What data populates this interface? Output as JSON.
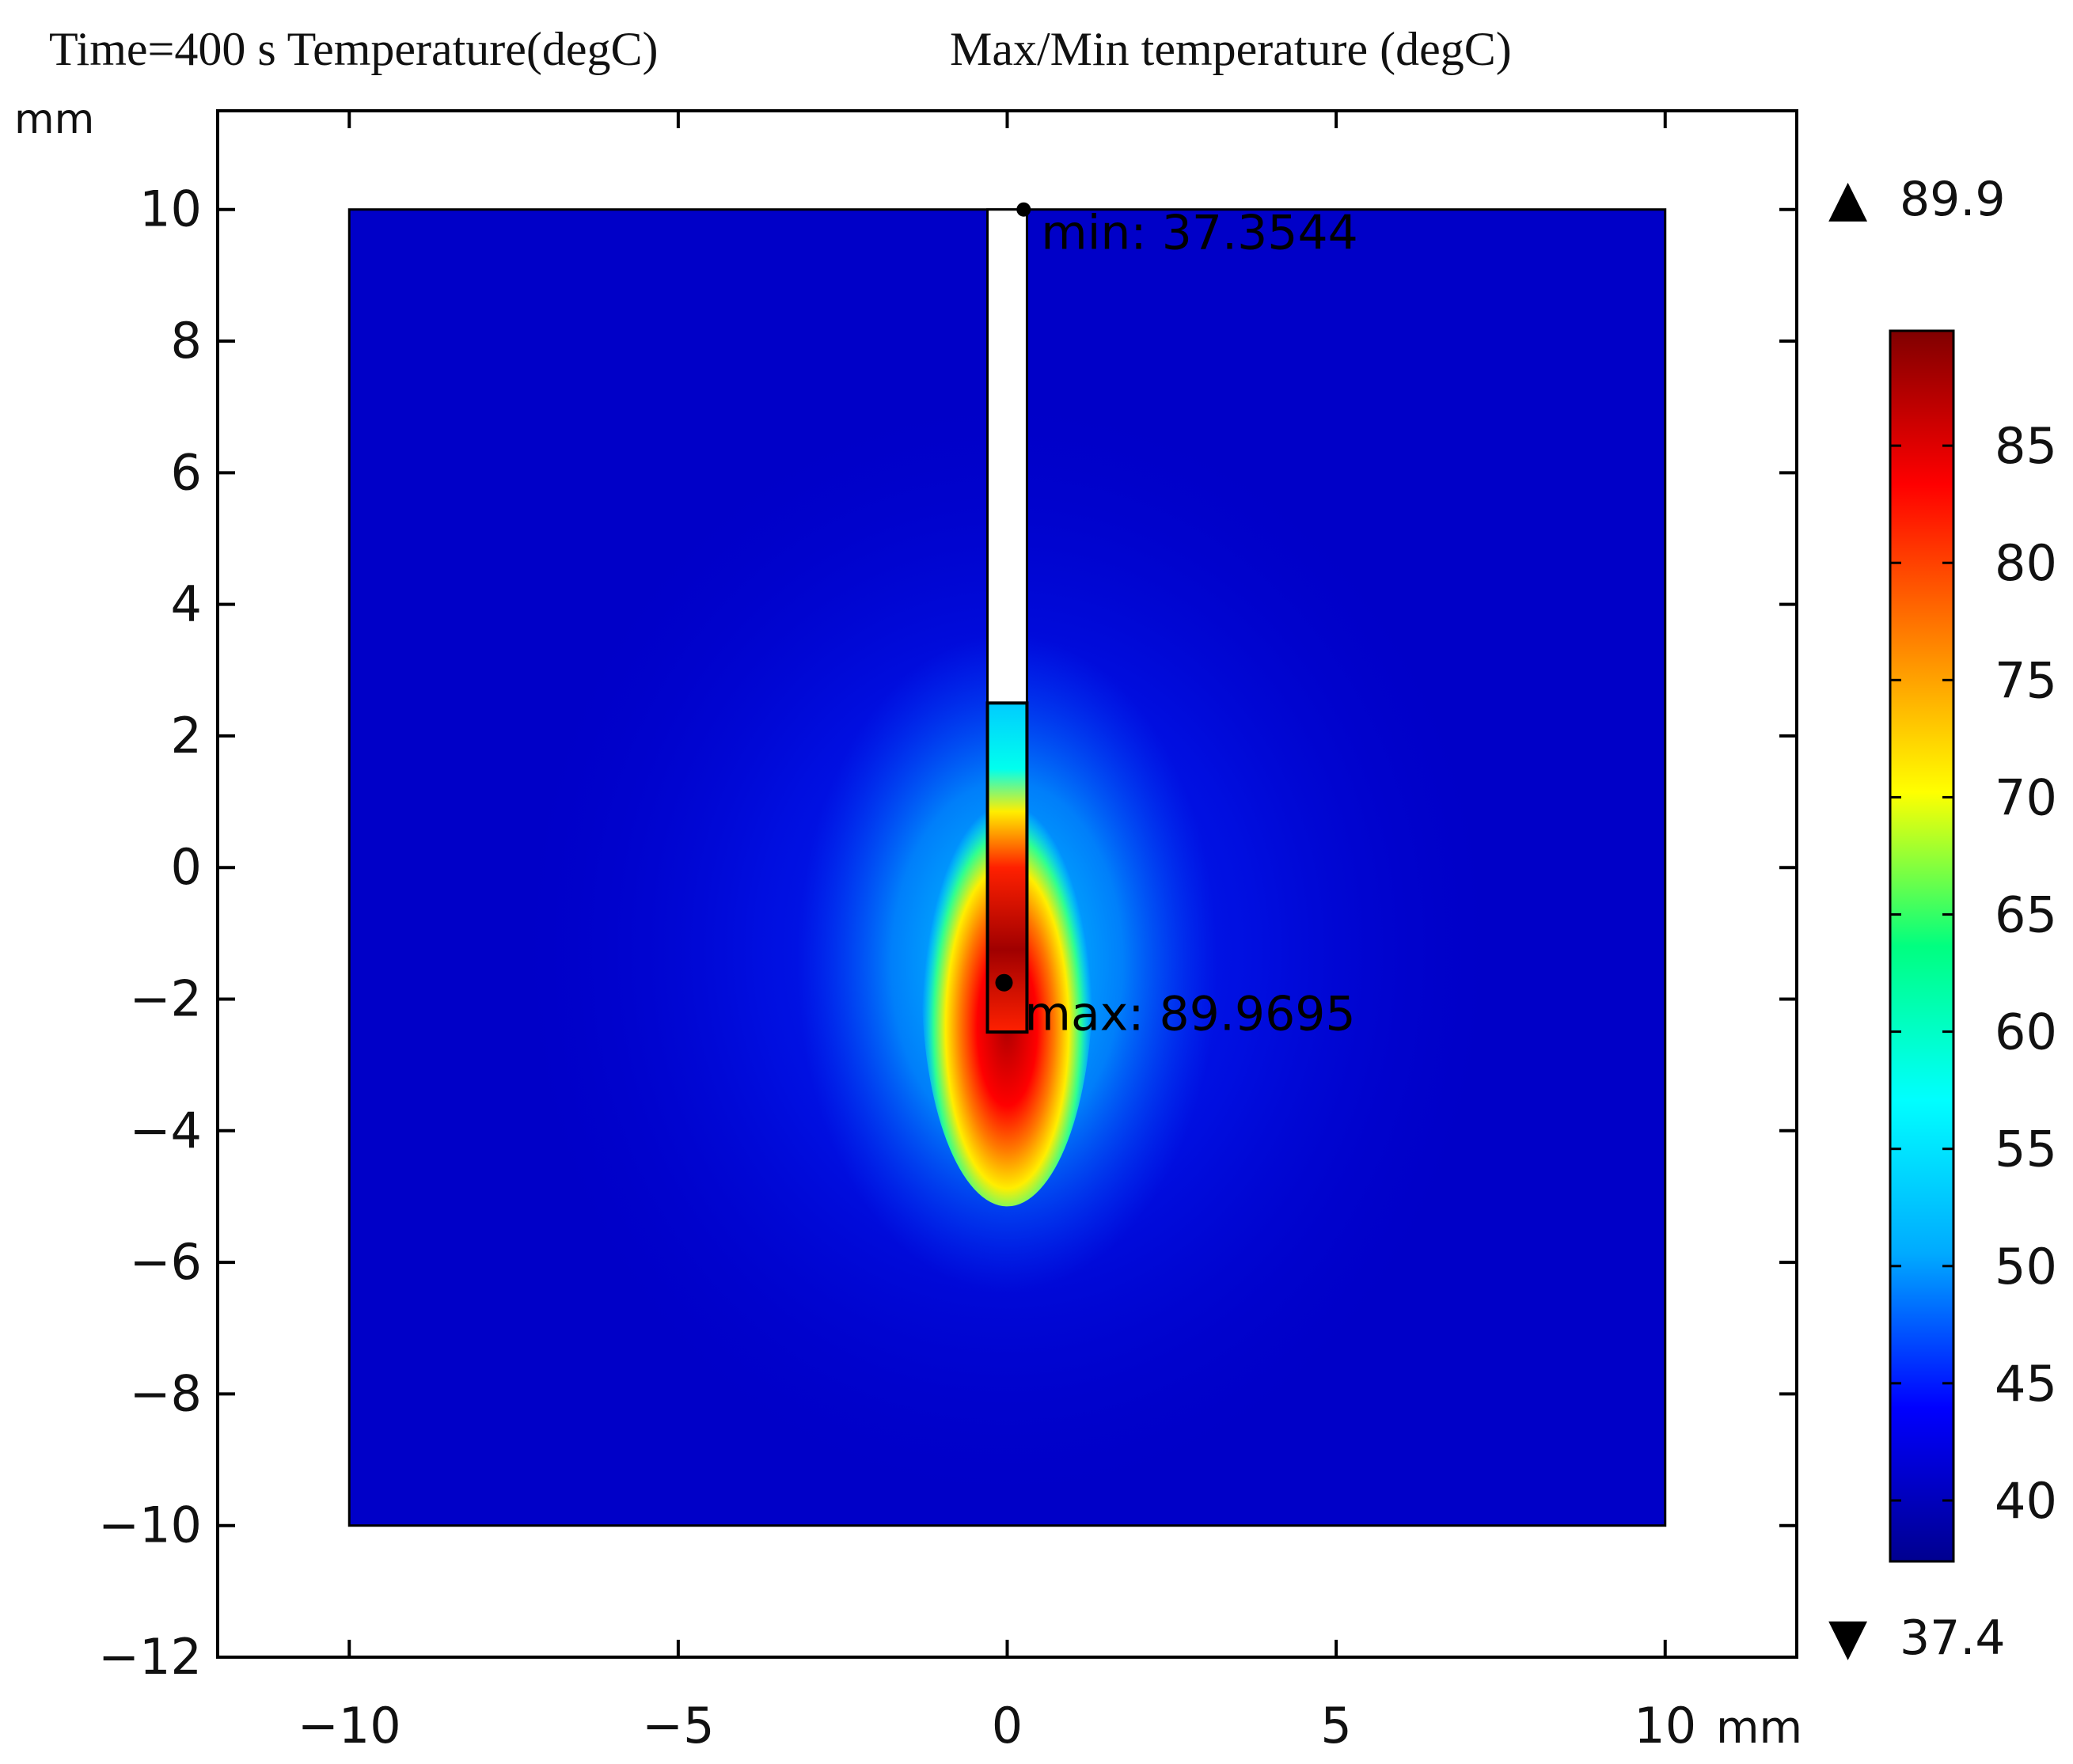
{
  "title_left": "Time=400 s Temperature(degC)",
  "title_right": "Max/Min temperature (degC)",
  "y_unit_label": "mm",
  "x_unit_label": "mm",
  "colorbar": {
    "max_label": "89.9",
    "min_label": "37.4",
    "max_marker": "▲",
    "min_marker": "▼",
    "ticks": [
      "85",
      "80",
      "75",
      "70",
      "65",
      "60",
      "55",
      "50",
      "45",
      "40"
    ],
    "colors": [
      "#00008f",
      "#0000ff",
      "#00aaff",
      "#00ffff",
      "#00ff80",
      "#ffff00",
      "#ff8000",
      "#ff0000",
      "#800000"
    ]
  },
  "annotations": {
    "min_text": "min: 37.3544",
    "max_text": "max: 89.9695"
  },
  "chart_data": {
    "type": "heatmap",
    "title": "Time=400 s Temperature(degC)",
    "subtitle": "Max/Min temperature (degC)",
    "xlabel": "mm",
    "ylabel": "mm",
    "xlim": [
      -12,
      12
    ],
    "ylim": [
      -12,
      11.5
    ],
    "x_ticks": [
      -10,
      -5,
      0,
      5,
      10
    ],
    "x_tick_labels": [
      "−10",
      "−5",
      "0",
      "5",
      "10"
    ],
    "y_ticks": [
      10,
      8,
      6,
      4,
      2,
      0,
      -2,
      -4,
      -6,
      -8,
      -10,
      -12
    ],
    "y_tick_labels": [
      "10",
      "8",
      "6",
      "4",
      "2",
      "0",
      "−2",
      "−4",
      "−6",
      "−8",
      "−10",
      "−12"
    ],
    "domain": {
      "x": [
        -10,
        10
      ],
      "y": [
        -10,
        10
      ]
    },
    "probe": {
      "x": [
        -0.3,
        0.3
      ],
      "y_top": 10,
      "y_heated_top": 2.5,
      "y_bottom": -2.5
    },
    "color_range": [
      37.4,
      89.9
    ],
    "max_point": {
      "x": 0,
      "y": -1.75,
      "value": 89.9695
    },
    "min_point": {
      "x": 0.25,
      "y": 10,
      "value": 37.3544
    },
    "grid": false
  }
}
